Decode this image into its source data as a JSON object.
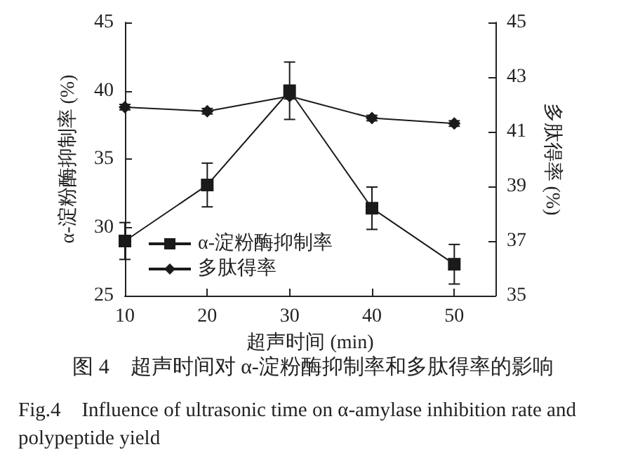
{
  "chart_data": {
    "type": "line",
    "title": "图 4　超声时间对 α-淀粉酶抑制率和多肽得率的影响",
    "subtitle": "Fig.4　Influence of ultrasonic time on α-amylase inhibition rate and polypeptide yield",
    "xlabel": "超声时间 (min)",
    "ylabel": "α-淀粉酶抑制率 (%)",
    "y2label": "多肽得率 (%)",
    "x": [
      10,
      20,
      30,
      40,
      50
    ],
    "series": [
      {
        "name": "α-淀粉酶抑制率",
        "color": "#1a1a1a",
        "marker": "square",
        "values": [
          29.0,
          33.1,
          40.0,
          31.4,
          27.3
        ],
        "errors": [
          1.35,
          1.6,
          2.1,
          1.55,
          1.45
        ]
      },
      {
        "name": "多肽得率",
        "color": "#1a1a1a",
        "marker": "diamond",
        "axis": "y2",
        "values": [
          41.9,
          41.75,
          42.3,
          41.5,
          41.3
        ],
        "errors": [
          0.1,
          0.1,
          0.1,
          0.1,
          0.1
        ]
      }
    ],
    "xlim": [
      10,
      55
    ],
    "xticks": [
      10,
      20,
      30,
      40,
      50
    ],
    "ylim": [
      25,
      45
    ],
    "yticks": [
      25,
      30,
      35,
      40,
      45
    ],
    "y2lim": [
      35,
      45
    ],
    "y2ticks": [
      35,
      37,
      39,
      41,
      43,
      45
    ],
    "legend": "bottom left",
    "grid": false,
    "line_style": "solid"
  }
}
